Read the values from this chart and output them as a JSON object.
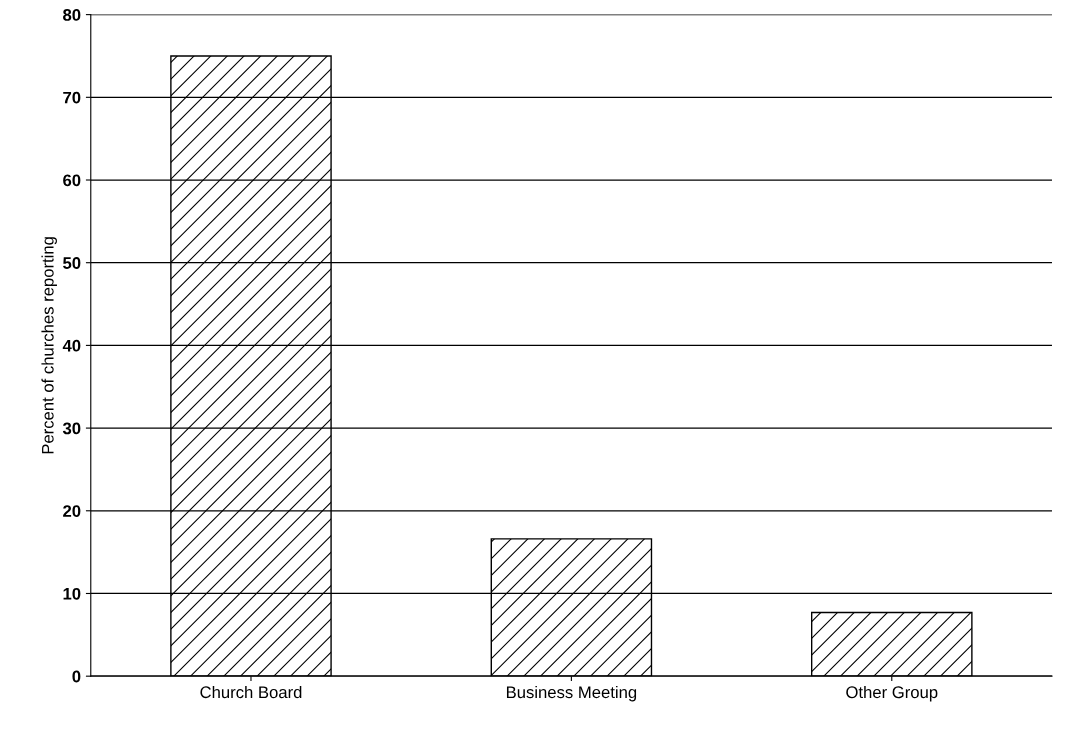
{
  "chart_data": {
    "type": "bar",
    "ylabel": "Percent of churches reporting",
    "categories": [
      "Church Board",
      "Business Meeting",
      "Other Group"
    ],
    "values": [
      75,
      16.6,
      7.7
    ],
    "color": "#000000",
    "ylim": [
      0,
      80
    ],
    "yticks": [
      0,
      10,
      20,
      30,
      40,
      50,
      60,
      70,
      80
    ],
    "grid": "y"
  }
}
